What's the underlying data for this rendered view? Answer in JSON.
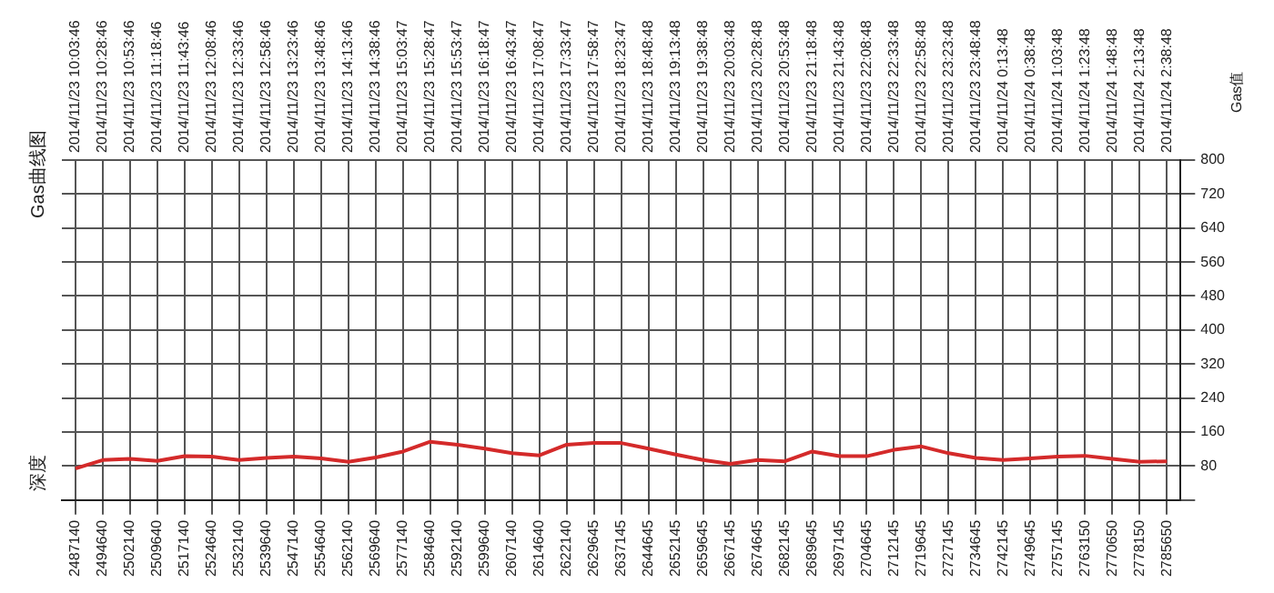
{
  "chart_data": {
    "type": "line",
    "title": "Gas曲线图",
    "ylabel": "Gas值",
    "categories": [
      "2487140",
      "2494640",
      "2502140",
      "2509640",
      "2517140",
      "2524640",
      "2532140",
      "2539640",
      "2547140",
      "2554640",
      "2562140",
      "2569640",
      "2577140",
      "2584640",
      "2592140",
      "2599640",
      "2607140",
      "2614640",
      "2622140",
      "2629645",
      "2637145",
      "2644645",
      "2652145",
      "2659645",
      "2667145",
      "2674645",
      "2682145",
      "2689645",
      "2697145",
      "2704645",
      "2712145",
      "2719645",
      "2727145",
      "2734645",
      "2742145",
      "2749645",
      "2757145",
      "2763150",
      "2770650",
      "2778150",
      "2785650"
    ],
    "series": [
      {
        "color": "#d42a2a",
        "values": [
          74,
          94,
          97,
          92,
          103,
          102,
          94,
          99,
          102,
          98,
          90,
          100,
          114,
          137,
          130,
          121,
          110,
          105,
          130,
          134,
          134,
          121,
          107,
          94,
          85,
          94,
          91,
          114,
          103,
          103,
          118,
          126,
          110,
          99,
          94,
          98,
          102,
          104,
          97,
          90,
          91
        ]
      }
    ],
    "ylim": [
      0,
      800
    ],
    "yticks": [
      {
        "value": 0,
        "label": null
      },
      80,
      160,
      240,
      320,
      400,
      480,
      560,
      640,
      720,
      800
    ],
    "annotations": [
      "2014/11/23 10:03:46",
      "2014/11/23 10:28:46",
      "2014/11/23 10:53:46",
      "2014/11/23 11:18:46",
      "2014/11/23 11:43:46",
      "2014/11/23 12:08:46",
      "2014/11/23 12:33:46",
      "2014/11/23 12:58:46",
      "2014/11/23 13:23:46",
      "2014/11/23 13:48:46",
      "2014/11/23 14:13:46",
      "2014/11/23 14:38:46",
      "2014/11/23 15:03:47",
      "2014/11/23 15:28:47",
      "2014/11/23 15:53:47",
      "2014/11/23 16:18:47",
      "2014/11/23 16:43:47",
      "2014/11/23 17:08:47",
      "2014/11/23 17:33:47",
      "2014/11/23 17:58:47",
      "2014/11/23 18:23:47",
      "2014/11/23 18:48:48",
      "2014/11/23 19:13:48",
      "2014/11/23 19:38:48",
      "2014/11/23 20:03:48",
      "2014/11/23 20:28:48",
      "2014/11/23 20:53:48",
      "2014/11/23 21:18:48",
      "2014/11/23 21:43:48",
      "2014/11/23 22:08:48",
      "2014/11/23 22:33:48",
      "2014/11/23 22:58:48",
      "2014/11/23 23:23:48",
      "2014/11/23 23:48:48",
      "2014/11/24 0:13:48",
      "2014/11/24 0:38:48",
      "2014/11/24 1:03:48",
      "2014/11/24 1:23:48",
      "2014/11/24 1:48:48",
      "2014/11/24 2:13:48",
      "2014/11/24 2:38:48",
      "深度"
    ],
    "grid": true,
    "marker": "none"
  }
}
